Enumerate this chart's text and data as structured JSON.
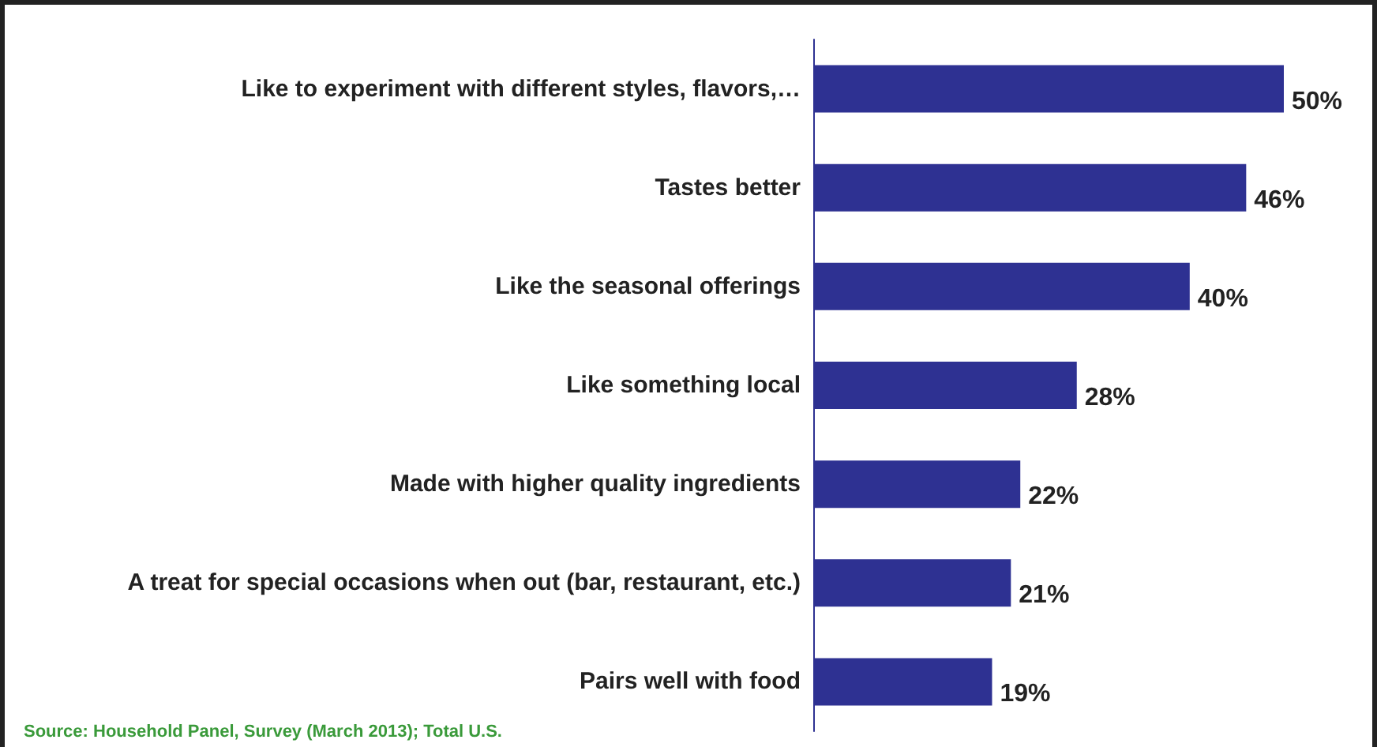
{
  "chart_data": {
    "type": "bar",
    "orientation": "horizontal",
    "categories": [
      "Like to experiment with different styles, flavors,…",
      "Tastes better",
      "Like the seasonal offerings",
      "Like something local",
      "Made with higher quality ingredients",
      "A treat for special occasions when out (bar, restaurant, etc.)",
      "Pairs well with food"
    ],
    "values": [
      50,
      46,
      40,
      28,
      22,
      21,
      19
    ],
    "value_labels": [
      "50%",
      "46%",
      "40%",
      "28%",
      "22%",
      "21%",
      "19%"
    ],
    "annotations": [
      "Source: Household Panel, Survey (March 2013); Total U.S."
    ],
    "color": "#2e3192"
  }
}
